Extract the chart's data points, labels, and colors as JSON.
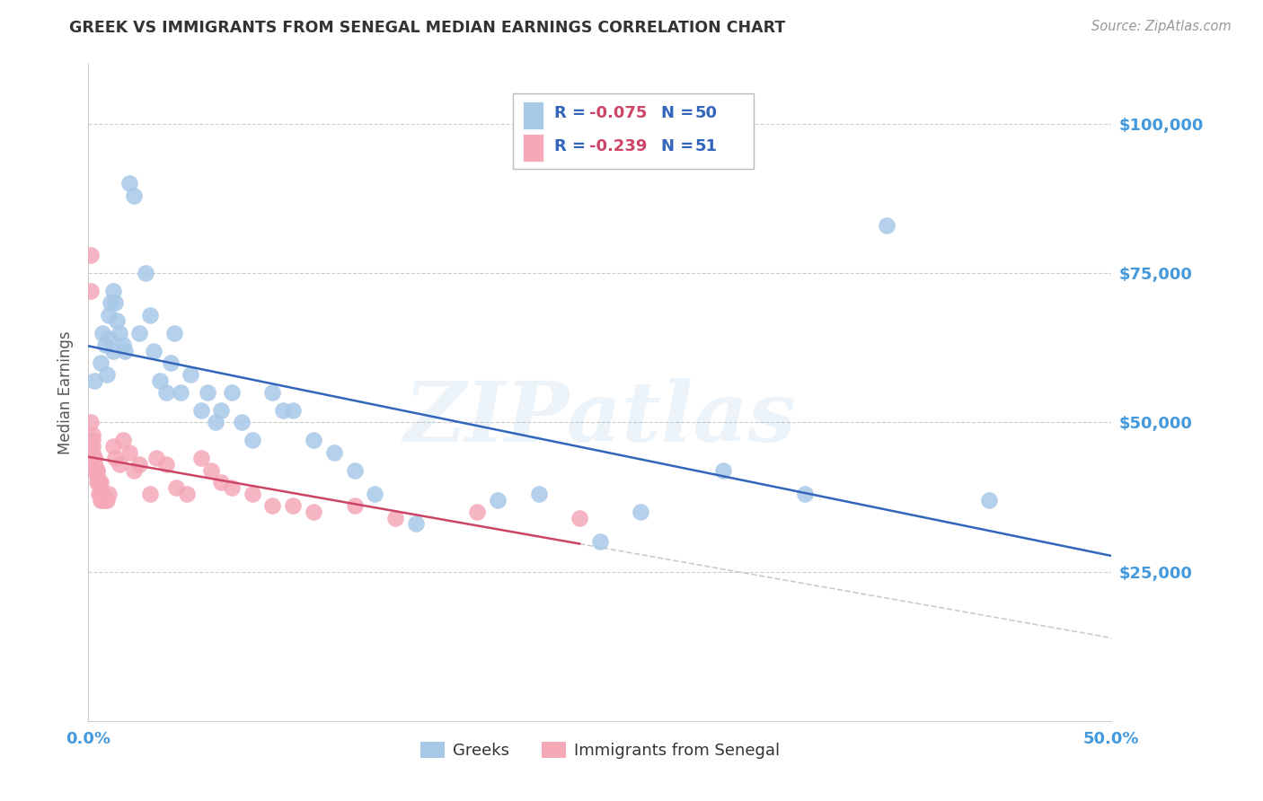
{
  "title": "GREEK VS IMMIGRANTS FROM SENEGAL MEDIAN EARNINGS CORRELATION CHART",
  "source": "Source: ZipAtlas.com",
  "ylabel": "Median Earnings",
  "xlim": [
    0.0,
    0.5
  ],
  "ylim": [
    0,
    110000
  ],
  "yticks": [
    0,
    25000,
    50000,
    75000,
    100000
  ],
  "ytick_labels": [
    "",
    "$25,000",
    "$50,000",
    "$75,000",
    "$100,000"
  ],
  "watermark": "ZIPatlas",
  "legend_r1": "-0.075",
  "legend_n1": "50",
  "legend_r2": "-0.239",
  "legend_n2": "51",
  "blue_color": "#a8c8e8",
  "pink_color": "#f4a8b8",
  "trend_blue": "#3366bb",
  "trend_pink": "#cc4466",
  "trend_gray": "#cccccc",
  "axis_color": "#4499dd",
  "grid_color": "#cccccc",
  "title_color": "#333333",
  "source_color": "#999999",
  "blues_x": [
    0.003,
    0.006,
    0.007,
    0.008,
    0.009,
    0.01,
    0.01,
    0.011,
    0.012,
    0.012,
    0.013,
    0.014,
    0.015,
    0.017,
    0.018,
    0.02,
    0.022,
    0.025,
    0.028,
    0.03,
    0.032,
    0.035,
    0.038,
    0.04,
    0.042,
    0.045,
    0.05,
    0.055,
    0.058,
    0.062,
    0.065,
    0.07,
    0.075,
    0.08,
    0.09,
    0.095,
    0.1,
    0.11,
    0.12,
    0.13,
    0.14,
    0.16,
    0.2,
    0.22,
    0.25,
    0.27,
    0.31,
    0.35,
    0.39,
    0.44
  ],
  "blues_y": [
    57000,
    60000,
    65000,
    63000,
    58000,
    64000,
    68000,
    70000,
    72000,
    62000,
    70000,
    67000,
    65000,
    63000,
    62000,
    90000,
    88000,
    65000,
    75000,
    68000,
    62000,
    57000,
    55000,
    60000,
    65000,
    55000,
    58000,
    52000,
    55000,
    50000,
    52000,
    55000,
    50000,
    47000,
    55000,
    52000,
    52000,
    47000,
    45000,
    42000,
    38000,
    33000,
    37000,
    38000,
    30000,
    35000,
    42000,
    38000,
    83000,
    37000
  ],
  "pinks_x": [
    0.001,
    0.001,
    0.001,
    0.002,
    0.002,
    0.002,
    0.002,
    0.003,
    0.003,
    0.003,
    0.003,
    0.003,
    0.004,
    0.004,
    0.004,
    0.004,
    0.005,
    0.005,
    0.005,
    0.006,
    0.006,
    0.006,
    0.007,
    0.007,
    0.008,
    0.009,
    0.01,
    0.012,
    0.013,
    0.015,
    0.017,
    0.02,
    0.022,
    0.025,
    0.03,
    0.033,
    0.038,
    0.043,
    0.048,
    0.055,
    0.06,
    0.065,
    0.07,
    0.08,
    0.09,
    0.1,
    0.11,
    0.13,
    0.15,
    0.19,
    0.24
  ],
  "pinks_y": [
    78000,
    72000,
    50000,
    48000,
    47000,
    46000,
    45000,
    44000,
    44000,
    43000,
    43000,
    42000,
    42000,
    42000,
    41000,
    40000,
    40000,
    40000,
    38000,
    40000,
    38000,
    37000,
    38000,
    37000,
    37000,
    37000,
    38000,
    46000,
    44000,
    43000,
    47000,
    45000,
    42000,
    43000,
    38000,
    44000,
    43000,
    39000,
    38000,
    44000,
    42000,
    40000,
    39000,
    38000,
    36000,
    36000,
    35000,
    36000,
    34000,
    35000,
    34000
  ]
}
